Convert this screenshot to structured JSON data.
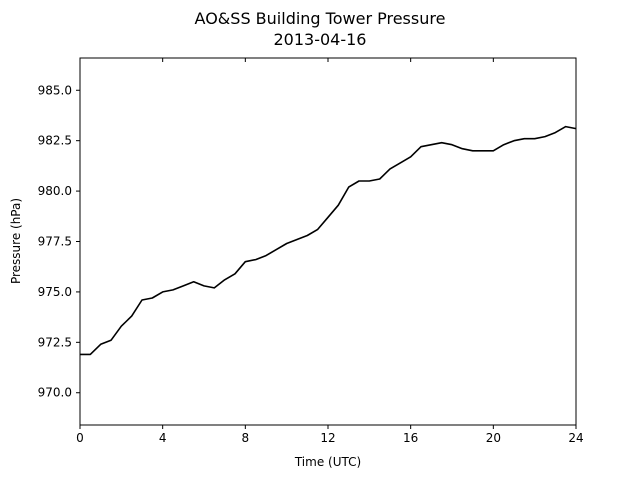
{
  "chart_data": {
    "type": "line",
    "title": "AO&SS Building Tower Pressure",
    "subtitle": "2013-04-16",
    "xlabel": "Time (UTC)",
    "ylabel": "Pressure (hPa)",
    "xlim": [
      0,
      24
    ],
    "ylim": [
      968.4,
      986.6
    ],
    "x_ticks": [
      0,
      4,
      8,
      12,
      16,
      20,
      24
    ],
    "x_tick_labels": [
      "0",
      "4",
      "8",
      "12",
      "16",
      "20",
      "24"
    ],
    "y_ticks": [
      970.0,
      972.5,
      975.0,
      977.5,
      980.0,
      982.5,
      985.0
    ],
    "y_tick_labels": [
      "970.0",
      "972.5",
      "975.0",
      "977.5",
      "980.0",
      "982.5",
      "985.0"
    ],
    "grid": false,
    "line_color": "#000000",
    "series": [
      {
        "x": [
          0,
          0.5,
          1.0,
          1.5,
          2.0,
          2.5,
          3.0,
          3.5,
          4.0,
          4.5,
          5.0,
          5.5,
          6.0,
          6.5,
          7.0,
          7.5,
          8.0,
          8.5,
          9.0,
          9.5,
          10.0,
          10.5,
          11.0,
          11.5,
          12.0,
          12.5,
          13.0,
          13.5,
          14.0,
          14.5,
          15.0,
          15.5,
          16.0,
          16.5,
          17.0,
          17.5,
          18.0,
          18.5,
          19.0,
          19.5,
          20.0,
          20.5,
          21.0,
          21.5,
          22.0,
          22.5,
          23.0,
          23.5,
          24.0
        ],
        "values": [
          971.9,
          971.9,
          972.4,
          972.6,
          973.3,
          973.8,
          974.6,
          974.7,
          975.0,
          975.1,
          975.3,
          975.5,
          975.3,
          975.2,
          975.6,
          975.9,
          976.5,
          976.6,
          976.8,
          977.1,
          977.4,
          977.6,
          977.8,
          978.1,
          978.7,
          979.3,
          980.2,
          980.5,
          980.5,
          980.6,
          981.1,
          981.4,
          981.7,
          982.2,
          982.3,
          982.4,
          982.3,
          982.1,
          982.0,
          982.0,
          982.0,
          982.3,
          982.5,
          982.6,
          982.6,
          982.7,
          982.9,
          983.2,
          983.1
        ]
      }
    ]
  }
}
